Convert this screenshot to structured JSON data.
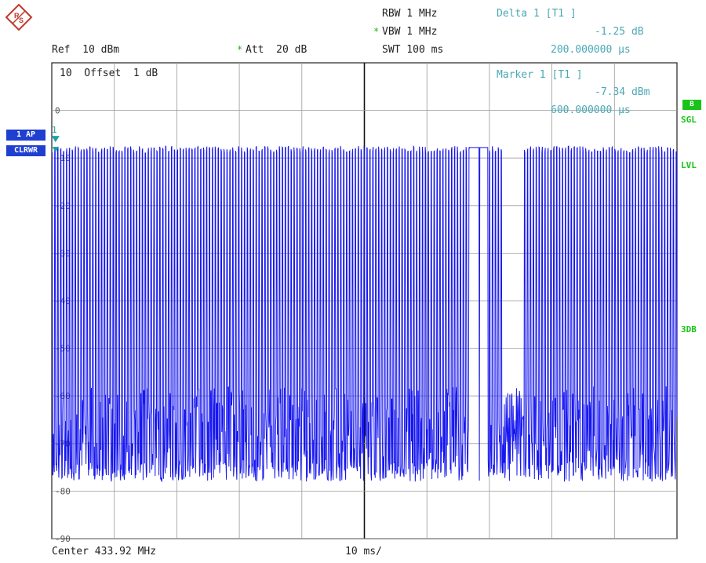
{
  "header": {
    "rbw": "RBW 1 MHz",
    "vbw": "VBW 1 MHz",
    "swt": "SWT 100 ms",
    "ref": "Ref  10 dBm",
    "att": "Att  20 dB",
    "delta_title": "Delta 1 [T1 ]",
    "delta_level": "-1.25 dB",
    "delta_time": "200.000000 µs"
  },
  "plot_overlay": {
    "offset": "10  Offset  1 dB",
    "marker_title": "Marker 1 [T1 ]",
    "marker_level": "-7.34 dBm",
    "marker_time": "600.000000 µs"
  },
  "left_panel": {
    "trace_1": "1 AP",
    "trace_2": "CLRWR",
    "marker_number": "1"
  },
  "right_panel": {
    "sgl_box": "B",
    "sgl": "SGL",
    "lvl": "LVL",
    "db3": "3DB"
  },
  "footer": {
    "center": "Center 433.92 MHz",
    "div": "10 ms/"
  },
  "colors": {
    "trace": "#1717f0",
    "grid": "#9a9a9a",
    "marker_text": "#4aa8b5",
    "status_green": "#19c419",
    "panel_blue": "#1f3fd1"
  },
  "chart_data": {
    "type": "line",
    "title": "",
    "xlabel": "",
    "ylabel": "",
    "xlim": [
      0,
      100
    ],
    "ylim": [
      -90,
      10
    ],
    "x_unit": "ms",
    "y_unit": "dBm",
    "yticks": [
      0,
      -10,
      -20,
      -30,
      -40,
      -50,
      -60,
      -70,
      -80,
      -90
    ],
    "ytick_labels": [
      "0",
      "-10",
      "-20",
      "-30",
      "-40",
      "-50",
      "-60",
      "-70",
      "-80",
      "-90"
    ],
    "grid": true,
    "series": [
      {
        "description_values": {
          "pulse_high_dbm": -7.5,
          "noise_floor_range_dbm": [
            -78,
            -58
          ],
          "gaps_ms": [
            [
              66.8,
              69.8
            ],
            [
              72.0,
              75.5
            ]
          ]
        },
        "values": []
      }
    ],
    "markers": [
      {
        "label": "1",
        "x": 0.6,
        "y": -7.34
      }
    ]
  }
}
